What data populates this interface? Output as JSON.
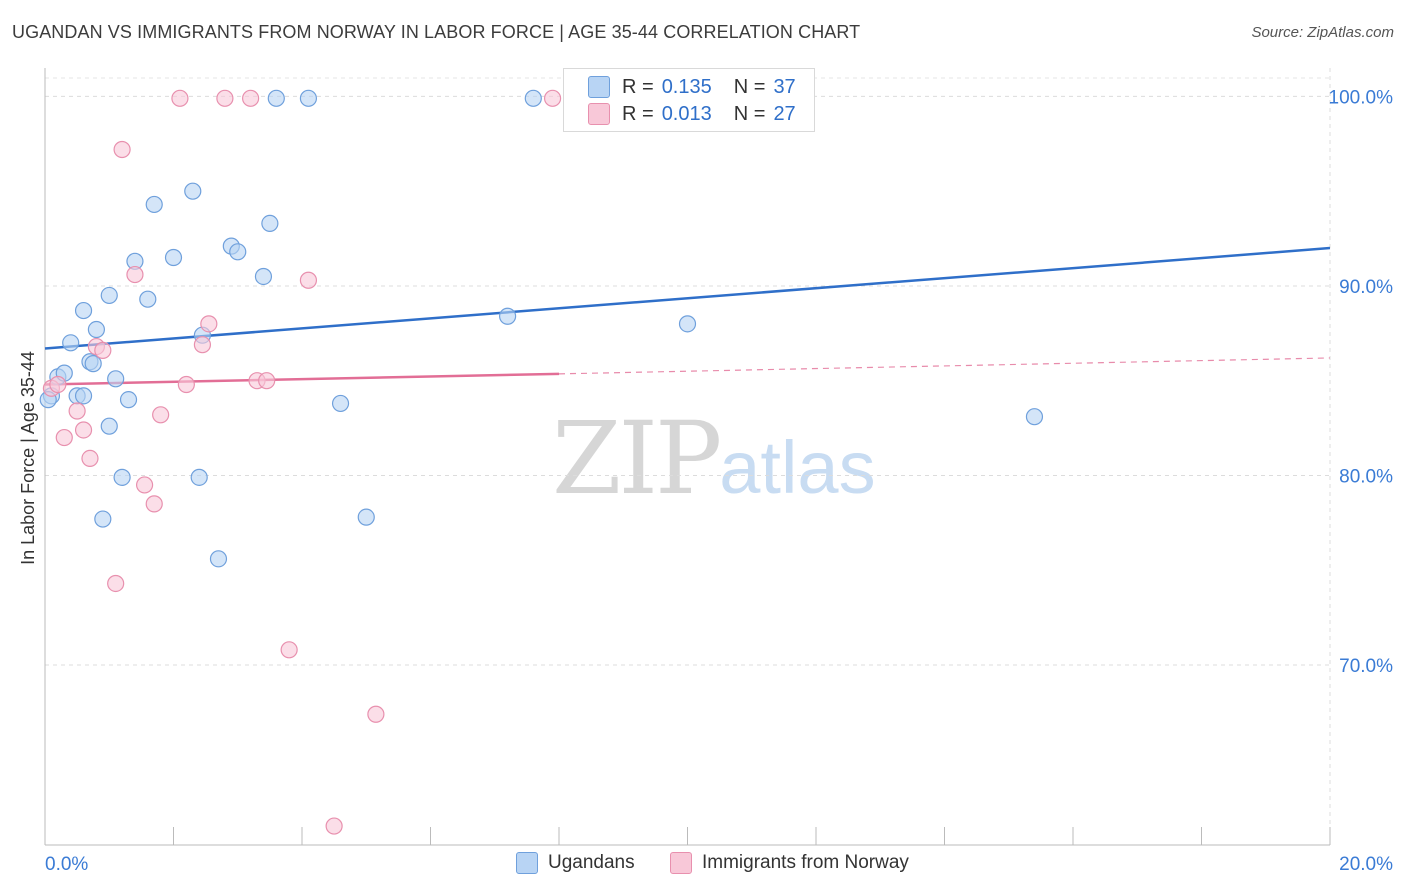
{
  "title": "UGANDAN VS IMMIGRANTS FROM NORWAY IN LABOR FORCE | AGE 35-44 CORRELATION CHART",
  "source": "Source: ZipAtlas.com",
  "watermark": {
    "zip": "ZIP",
    "atlas": "atlas"
  },
  "legend": {
    "rows": [
      {
        "r_label": "R =",
        "r_value": "0.135",
        "n_label": "N =",
        "n_value": "37"
      },
      {
        "r_label": "R =",
        "r_value": "0.013",
        "n_label": "N =",
        "n_value": "27"
      }
    ]
  },
  "bottom_legend": {
    "series_1": "Ugandans",
    "series_2": "Immigrants from Norway"
  },
  "colors": {
    "blue_fill": "#b8d4f4",
    "blue_stroke": "#6fa0dc",
    "blue_line": "#2f6fc9",
    "pink_fill": "#f8c8d8",
    "pink_stroke": "#e890ae",
    "pink_line": "#e26e96",
    "axis_label": "#3a7bd5"
  },
  "chart_data": {
    "type": "scatter",
    "title": "UGANDAN VS IMMIGRANTS FROM NORWAY IN LABOR FORCE | AGE 35-44 CORRELATION CHART",
    "xlabel": "",
    "ylabel": "In Labor Force | Age 35-44",
    "xlim": [
      0,
      20
    ],
    "ylim": [
      60.5,
      101.5
    ],
    "x_tick_labels": [
      "0.0%",
      "20.0%"
    ],
    "y_ticks": [
      100,
      90,
      80,
      70
    ],
    "y_tick_labels": [
      "100.0%",
      "90.0%",
      "80.0%",
      "70.0%"
    ],
    "grid": true,
    "series": [
      {
        "name": "Ugandans",
        "r": 0.135,
        "n": 37,
        "trend": {
          "x": [
            0,
            20
          ],
          "y": [
            86.7,
            92.0
          ],
          "dashed_from": null
        },
        "points": [
          [
            0.1,
            84.2
          ],
          [
            0.2,
            85.2
          ],
          [
            0.3,
            85.4
          ],
          [
            0.4,
            87.0
          ],
          [
            0.5,
            84.2
          ],
          [
            0.6,
            88.7
          ],
          [
            0.7,
            86.0
          ],
          [
            0.75,
            85.9
          ],
          [
            0.8,
            87.7
          ],
          [
            1.0,
            89.5
          ],
          [
            1.0,
            82.6
          ],
          [
            1.1,
            85.1
          ],
          [
            1.2,
            79.9
          ],
          [
            1.3,
            84.0
          ],
          [
            0.9,
            77.7
          ],
          [
            1.4,
            91.3
          ],
          [
            1.6,
            89.3
          ],
          [
            1.7,
            94.3
          ],
          [
            2.0,
            91.5
          ],
          [
            2.3,
            95.0
          ],
          [
            2.4,
            79.9
          ],
          [
            2.45,
            87.4
          ],
          [
            2.7,
            75.6
          ],
          [
            2.9,
            92.1
          ],
          [
            3.0,
            91.8
          ],
          [
            3.4,
            90.5
          ],
          [
            3.5,
            93.3
          ],
          [
            3.6,
            99.9
          ],
          [
            4.1,
            99.9
          ],
          [
            4.6,
            83.8
          ],
          [
            5.0,
            77.8
          ],
          [
            7.2,
            88.4
          ],
          [
            7.6,
            99.9
          ],
          [
            10.0,
            88.0
          ],
          [
            15.4,
            83.1
          ],
          [
            0.05,
            84.0
          ],
          [
            0.6,
            84.2
          ]
        ]
      },
      {
        "name": "Immigrants from Norway",
        "r": 0.013,
        "n": 27,
        "trend": {
          "x": [
            0,
            20
          ],
          "y": [
            84.8,
            86.2
          ],
          "dashed_from": 8.0
        },
        "points": [
          [
            0.1,
            84.6
          ],
          [
            0.2,
            84.8
          ],
          [
            0.3,
            82.0
          ],
          [
            0.5,
            83.4
          ],
          [
            0.6,
            82.4
          ],
          [
            0.7,
            80.9
          ],
          [
            0.8,
            86.8
          ],
          [
            0.9,
            86.6
          ],
          [
            1.1,
            74.3
          ],
          [
            1.2,
            97.2
          ],
          [
            1.4,
            90.6
          ],
          [
            1.55,
            79.5
          ],
          [
            1.7,
            78.5
          ],
          [
            1.8,
            83.2
          ],
          [
            2.1,
            99.9
          ],
          [
            2.2,
            84.8
          ],
          [
            2.45,
            86.9
          ],
          [
            2.55,
            88.0
          ],
          [
            2.8,
            99.9
          ],
          [
            3.2,
            99.9
          ],
          [
            3.3,
            85.0
          ],
          [
            3.45,
            85.0
          ],
          [
            3.8,
            70.8
          ],
          [
            4.1,
            90.3
          ],
          [
            4.5,
            61.5
          ],
          [
            5.15,
            67.4
          ],
          [
            7.9,
            99.9
          ]
        ]
      }
    ]
  }
}
